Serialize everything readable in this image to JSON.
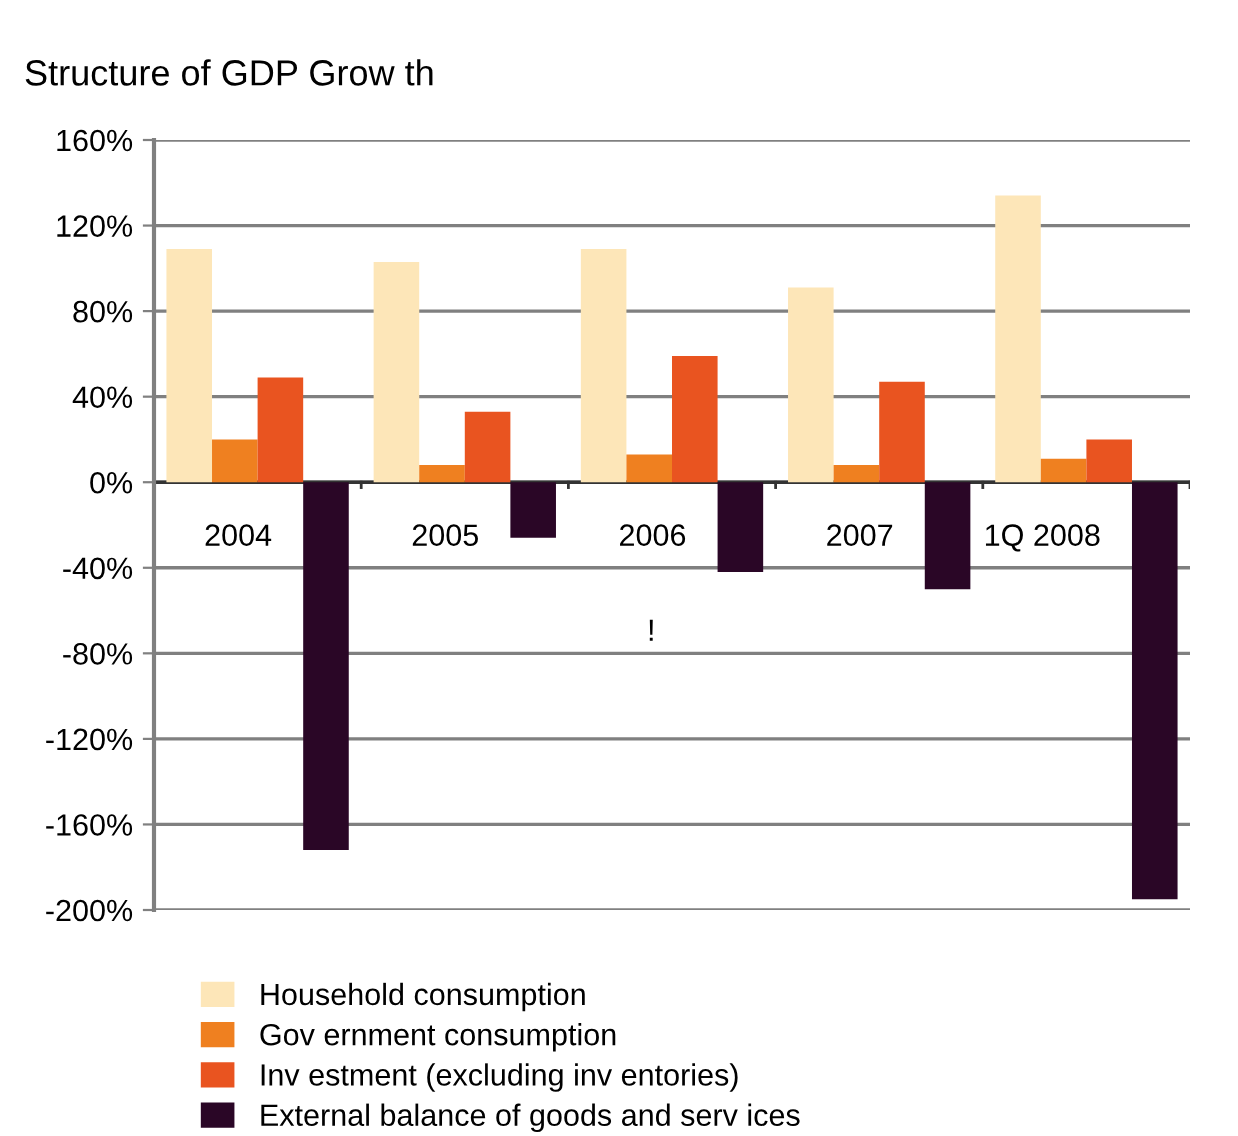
{
  "chart_data": {
    "type": "bar",
    "title": "Structure of GDP Grow th",
    "categories": [
      "2004",
      "2005",
      "2006",
      "2007",
      "1Q 2008"
    ],
    "series": [
      {
        "name": "Household consumption",
        "color": "#fde6b8",
        "values": [
          109,
          103,
          109,
          91,
          134
        ]
      },
      {
        "name": "Gov ernment consumption",
        "color": "#ef8020",
        "values": [
          20,
          8,
          13,
          8,
          11
        ]
      },
      {
        "name": "Inv estment (excluding inv entories)",
        "color": "#e95420",
        "values": [
          49,
          33,
          59,
          47,
          20
        ]
      },
      {
        "name": "External balance of goods and serv ices",
        "color": "#2a0626",
        "values": [
          -172,
          -26,
          -42,
          -50,
          -195
        ]
      }
    ],
    "ylim": [
      -200,
      160
    ],
    "yticks": [
      {
        "value": -200,
        "label": "-200%"
      },
      {
        "value": -160,
        "label": "-160%"
      },
      {
        "value": -120,
        "label": "-120%"
      },
      {
        "value": -80,
        "label": "-80%"
      },
      {
        "value": -40,
        "label": "-40%"
      },
      {
        "value": 0,
        "label": "0%"
      },
      {
        "value": 40,
        "label": "40%"
      },
      {
        "value": 80,
        "label": "80%"
      },
      {
        "value": 120,
        "label": "120%"
      },
      {
        "value": 160,
        "label": "160%"
      }
    ],
    "grid": "y",
    "legend": "bottom",
    "annotations": [
      "!"
    ]
  }
}
